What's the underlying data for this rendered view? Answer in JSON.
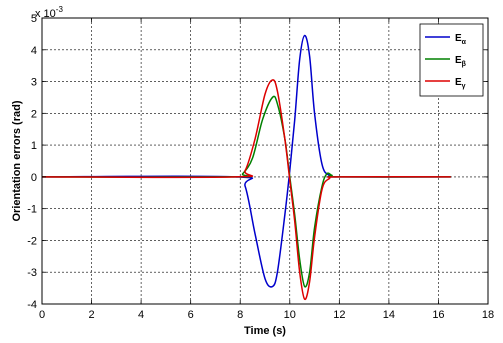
{
  "chart_data": {
    "type": "line",
    "xlabel": "Time (s)",
    "ylabel": "Orientation errors (rad)",
    "y_multiplier": {
      "base": "x 10",
      "exponent": "-3"
    },
    "xlim": [
      0,
      18
    ],
    "ylim": [
      -4,
      5
    ],
    "x_ticks": [
      "0",
      "2",
      "4",
      "6",
      "8",
      "10",
      "12",
      "14",
      "16",
      "18"
    ],
    "y_ticks": [
      "-4",
      "-3",
      "-2",
      "-1",
      "0",
      "1",
      "2",
      "3",
      "4",
      "5"
    ],
    "grid": true,
    "legend_position": "top-right",
    "series": [
      {
        "name": "E",
        "subscript": "α",
        "color": "#0000cc",
        "x": [
          0,
          7.8,
          8.2,
          8.6,
          9.0,
          9.3,
          9.5,
          9.8,
          10.0,
          10.2,
          10.4,
          10.6,
          10.8,
          11.0,
          11.3,
          11.6,
          12.0,
          16.5
        ],
        "y": [
          0,
          0,
          -0.3,
          -1.8,
          -3.2,
          -3.45,
          -3.0,
          -1.2,
          0.2,
          1.8,
          3.7,
          4.45,
          3.8,
          2.0,
          0.4,
          0.05,
          0,
          0
        ]
      },
      {
        "name": "E",
        "subscript": "β",
        "color": "#008000",
        "x": [
          0,
          7.8,
          8.1,
          8.5,
          8.9,
          9.3,
          9.5,
          9.8,
          10.0,
          10.2,
          10.4,
          10.6,
          10.8,
          11.0,
          11.3,
          11.5,
          11.7,
          12.0,
          16.5
        ],
        "y": [
          0,
          0,
          0.1,
          0.6,
          1.8,
          2.5,
          2.3,
          1.2,
          0.0,
          -1.2,
          -2.6,
          -3.45,
          -3.0,
          -1.6,
          -0.3,
          0.1,
          0.05,
          0,
          0
        ]
      },
      {
        "name": "E",
        "subscript": "γ",
        "color": "#dd0000",
        "x": [
          0,
          7.8,
          8.2,
          8.6,
          9.0,
          9.3,
          9.5,
          9.8,
          10.0,
          10.2,
          10.4,
          10.6,
          10.8,
          11.0,
          11.3,
          11.6,
          12.0,
          16.5
        ],
        "y": [
          0,
          0,
          0.2,
          1.2,
          2.6,
          3.05,
          2.7,
          1.2,
          -0.1,
          -1.4,
          -3.0,
          -3.85,
          -3.3,
          -1.9,
          -0.4,
          -0.05,
          0,
          0
        ]
      }
    ]
  }
}
